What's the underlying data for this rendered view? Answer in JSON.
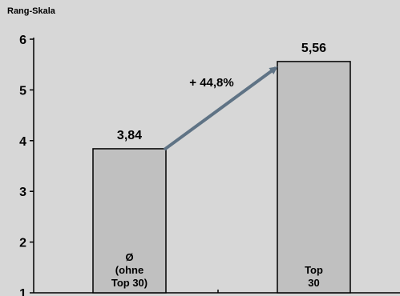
{
  "chart_data": {
    "type": "bar",
    "ylabel": "Rang-Skala",
    "ylim": [
      1,
      6
    ],
    "yticks": [
      "1",
      "2",
      "3",
      "4",
      "5",
      "6"
    ],
    "categories": [
      {
        "lines": [
          "Ø",
          "(ohne",
          "Top 30)"
        ]
      },
      {
        "lines": [
          "Top",
          "30"
        ]
      }
    ],
    "values": [
      3.84,
      5.56
    ],
    "value_labels": [
      "3,84",
      "5,56"
    ],
    "annotation": {
      "text": "+ 44,8%",
      "color": "#5f7385"
    },
    "colors": {
      "bar": "#c0c0c0",
      "background": "#d7d7d7",
      "axis": "#000000"
    },
    "grid": false
  }
}
